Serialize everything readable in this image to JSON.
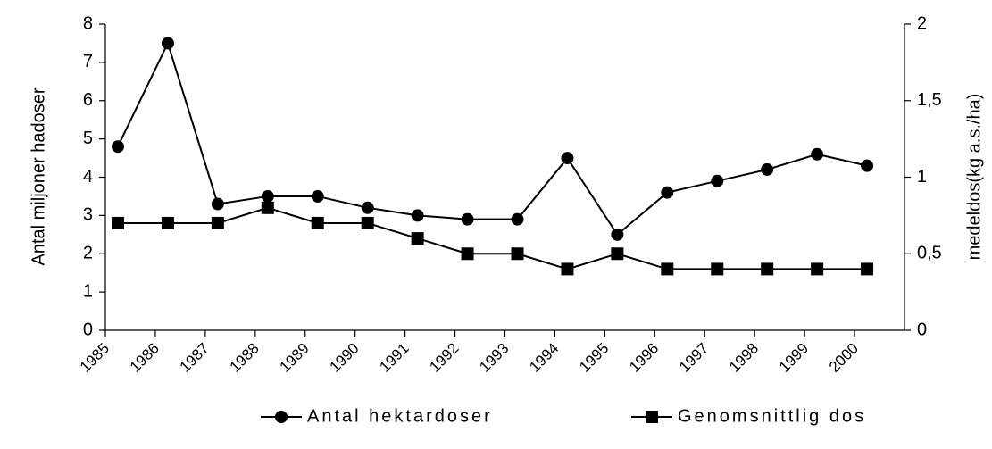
{
  "chart_data": {
    "type": "line",
    "y_label": "Antal miljoner hadoser",
    "y2_label": "medeldos(kg a.s./ha)",
    "categories": [
      "1985",
      "1986",
      "1987",
      "1988",
      "1989",
      "1990",
      "1991",
      "1992",
      "1993",
      "1994",
      "1995",
      "1996",
      "1997",
      "1998",
      "1999",
      "2000"
    ],
    "series": [
      {
        "name": "Antal hektardoser",
        "color": "#000000",
        "marker": "circle",
        "values": [
          4.8,
          7.5,
          3.3,
          3.5,
          3.5,
          3.2,
          3.0,
          2.9,
          2.9,
          4.5,
          2.5,
          3.6,
          3.9,
          4.2,
          4.6,
          4.3
        ]
      },
      {
        "name": "Genomsnittlig dos",
        "color": "#000000",
        "marker": "square",
        "axis": "y2",
        "values": [
          0.7,
          0.7,
          0.7,
          0.8,
          0.7,
          0.7,
          0.6,
          0.5,
          0.5,
          0.4,
          0.5,
          0.4,
          0.4,
          0.4,
          0.4,
          0.4
        ]
      }
    ],
    "ylim": [
      0,
      8
    ],
    "yticks": [
      0,
      1,
      2,
      3,
      4,
      5,
      6,
      7,
      8
    ],
    "y2lim": [
      0,
      2
    ],
    "y2ticks": [
      0,
      {
        "value": 0.5,
        "label": "0,5"
      },
      1,
      {
        "value": 1.5,
        "label": "1,5"
      },
      2
    ],
    "legend": "bottom"
  }
}
